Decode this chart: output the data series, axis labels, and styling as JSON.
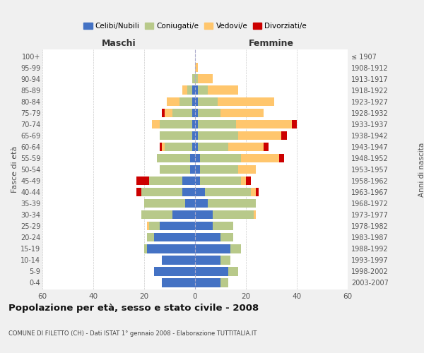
{
  "age_groups": [
    "0-4",
    "5-9",
    "10-14",
    "15-19",
    "20-24",
    "25-29",
    "30-34",
    "35-39",
    "40-44",
    "45-49",
    "50-54",
    "55-59",
    "60-64",
    "65-69",
    "70-74",
    "75-79",
    "80-84",
    "85-89",
    "90-94",
    "95-99",
    "100+"
  ],
  "birth_years": [
    "2003-2007",
    "1998-2002",
    "1993-1997",
    "1988-1992",
    "1983-1987",
    "1978-1982",
    "1973-1977",
    "1968-1972",
    "1963-1967",
    "1958-1962",
    "1953-1957",
    "1948-1952",
    "1943-1947",
    "1938-1942",
    "1933-1937",
    "1928-1932",
    "1923-1927",
    "1918-1922",
    "1913-1917",
    "1908-1912",
    "≤ 1907"
  ],
  "maschi": {
    "celibi": [
      13,
      16,
      13,
      19,
      16,
      14,
      9,
      4,
      5,
      5,
      2,
      2,
      1,
      1,
      1,
      1,
      1,
      1,
      0,
      0,
      0
    ],
    "coniugati": [
      0,
      0,
      0,
      1,
      3,
      4,
      12,
      16,
      16,
      13,
      12,
      13,
      11,
      13,
      13,
      8,
      5,
      2,
      1,
      0,
      0
    ],
    "vedovi": [
      0,
      0,
      0,
      0,
      0,
      1,
      0,
      0,
      0,
      0,
      0,
      0,
      1,
      0,
      3,
      3,
      5,
      2,
      0,
      0,
      0
    ],
    "divorziati": [
      0,
      0,
      0,
      0,
      0,
      0,
      0,
      0,
      2,
      5,
      0,
      0,
      1,
      0,
      0,
      1,
      0,
      0,
      0,
      0,
      0
    ]
  },
  "femmine": {
    "nubili": [
      10,
      13,
      10,
      14,
      10,
      7,
      7,
      5,
      4,
      2,
      2,
      2,
      1,
      1,
      1,
      1,
      1,
      1,
      0,
      0,
      0
    ],
    "coniugate": [
      3,
      4,
      4,
      4,
      5,
      8,
      16,
      19,
      18,
      16,
      15,
      16,
      12,
      16,
      15,
      9,
      8,
      4,
      1,
      0,
      0
    ],
    "vedove": [
      0,
      0,
      0,
      0,
      0,
      0,
      1,
      0,
      2,
      2,
      7,
      15,
      14,
      17,
      22,
      17,
      22,
      12,
      6,
      1,
      0
    ],
    "divorziate": [
      0,
      0,
      0,
      0,
      0,
      0,
      0,
      0,
      1,
      2,
      0,
      2,
      2,
      2,
      2,
      0,
      0,
      0,
      0,
      0,
      0
    ]
  },
  "colors": {
    "celibi_nubili": "#4472c4",
    "coniugati": "#b8c98a",
    "vedovi": "#ffc66d",
    "divorziati": "#cc0000"
  },
  "title": "Popolazione per età, sesso e stato civile - 2008",
  "subtitle": "COMUNE DI FILETTO (CH) - Dati ISTAT 1° gennaio 2008 - Elaborazione TUTTITALIA.IT",
  "ylabel_left": "Fasce di età",
  "ylabel_right": "Anni di nascita",
  "xlim": 60,
  "legend_labels": [
    "Celibi/Nubili",
    "Coniugati/e",
    "Vedovi/e",
    "Divorziati/e"
  ],
  "maschi_label": "Maschi",
  "femmine_label": "Femmine",
  "background_color": "#f0f0f0",
  "plot_bg_color": "#ffffff"
}
